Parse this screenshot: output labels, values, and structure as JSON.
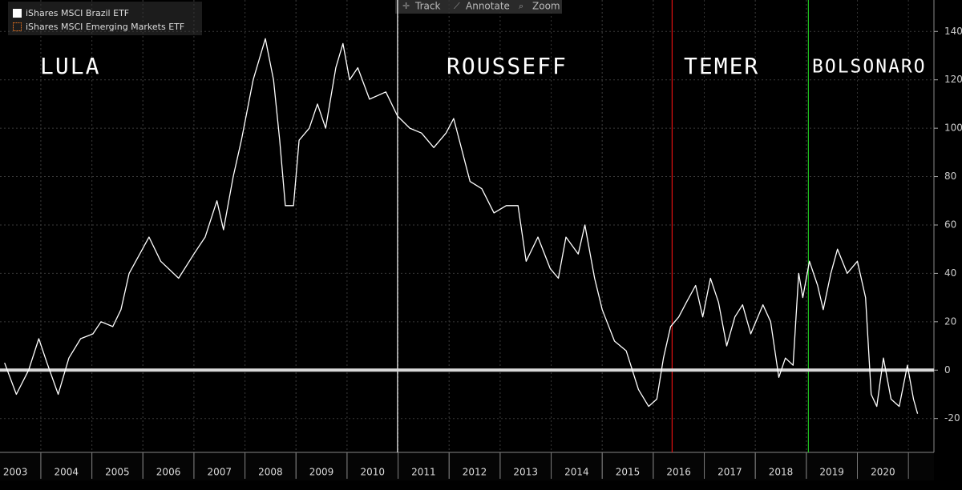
{
  "toolbar": [
    "Track",
    "Annotate",
    "Zoom"
  ],
  "chart_data": {
    "type": "line",
    "xlim": [
      2003.2,
      2021.5
    ],
    "ylim": [
      -34,
      153
    ],
    "yticks": [
      -20,
      0,
      20,
      40,
      60,
      80,
      100,
      120,
      140
    ],
    "xticks": [
      {
        "value": 2003.5,
        "label": "2003"
      },
      {
        "value": 2004.5,
        "label": "2004"
      },
      {
        "value": 2005.5,
        "label": "2005"
      },
      {
        "value": 2006.5,
        "label": "2006"
      },
      {
        "value": 2007.5,
        "label": "2007"
      },
      {
        "value": 2008.5,
        "label": "2008"
      },
      {
        "value": 2009.5,
        "label": "2009"
      },
      {
        "value": 2010.5,
        "label": "2010"
      },
      {
        "value": 2011.5,
        "label": "2011"
      },
      {
        "value": 2012.5,
        "label": "2012"
      },
      {
        "value": 2013.5,
        "label": "2013"
      },
      {
        "value": 2014.5,
        "label": "2014"
      },
      {
        "value": 2015.5,
        "label": "2015"
      },
      {
        "value": 2016.5,
        "label": "2016"
      },
      {
        "value": 2017.5,
        "label": "2017"
      },
      {
        "value": 2018.5,
        "label": "2018"
      },
      {
        "value": 2019.5,
        "label": "2019"
      },
      {
        "value": 2020.5,
        "label": "2020"
      }
    ],
    "grid": true,
    "series": [
      {
        "name": "iShares MSCI Brazil ETF",
        "color": "#ffffff",
        "x": [
          2003.29,
          2003.52,
          2003.76,
          2003.96,
          2004.12,
          2004.34,
          2004.55,
          2004.78,
          2005.02,
          2005.18,
          2005.41,
          2005.57,
          2005.73,
          2006.12,
          2006.35,
          2006.7,
          2007.0,
          2007.22,
          2007.45,
          2007.58,
          2007.77,
          2007.93,
          2008.16,
          2008.4,
          2008.56,
          2008.68,
          2008.79,
          2008.95,
          2009.06,
          2009.26,
          2009.42,
          2009.58,
          2009.78,
          2009.92,
          2010.05,
          2010.21,
          2010.44,
          2010.76,
          2010.99,
          2011.23,
          2011.46,
          2011.7,
          2011.94,
          2012.09,
          2012.2,
          2012.41,
          2012.64,
          2012.88,
          2013.12,
          2013.35,
          2013.51,
          2013.74,
          2013.98,
          2014.14,
          2014.29,
          2014.53,
          2014.66,
          2014.85,
          2015.0,
          2015.24,
          2015.47,
          2015.71,
          2015.91,
          2016.07,
          2016.2,
          2016.34,
          2016.5,
          2016.65,
          2016.83,
          2016.97,
          2017.12,
          2017.28,
          2017.44,
          2017.6,
          2017.75,
          2017.91,
          2018.15,
          2018.3,
          2018.46,
          2018.59,
          2018.74,
          2018.85,
          2018.93,
          2019.06,
          2019.22,
          2019.33,
          2019.48,
          2019.61,
          2019.8,
          2020.0,
          2020.16,
          2020.27,
          2020.38,
          2020.51,
          2020.66,
          2020.82,
          2020.98,
          2021.1,
          2021.18
        ],
        "values": [
          3,
          -10,
          0,
          13,
          3,
          -10,
          5,
          13,
          15,
          20,
          18,
          25,
          40,
          55,
          45,
          38,
          48,
          55,
          70,
          58,
          80,
          95,
          120,
          137,
          120,
          95,
          68,
          68,
          95,
          100,
          110,
          100,
          125,
          135,
          120,
          125,
          112,
          115,
          105,
          100,
          98,
          92,
          98,
          104,
          95,
          78,
          75,
          65,
          68,
          68,
          45,
          55,
          42,
          38,
          55,
          48,
          60,
          38,
          25,
          12,
          8,
          -8,
          -15,
          -12,
          5,
          18,
          22,
          28,
          35,
          22,
          38,
          28,
          10,
          22,
          27,
          15,
          27,
          20,
          -3,
          5,
          2,
          40,
          30,
          45,
          35,
          25,
          40,
          50,
          40,
          45,
          30,
          -10,
          -15,
          5,
          -12,
          -15,
          2,
          -12,
          -18
        ]
      },
      {
        "name": "iShares MSCI Emerging Markets ETF",
        "color": "#d8d8d8",
        "x": [
          2003.2,
          2021.5
        ],
        "values": [
          0,
          0
        ]
      }
    ],
    "annotations": [
      {
        "text": "LULA",
        "x": 2003.2,
        "color": "#ffffff"
      },
      {
        "text": "ROUSSEFF",
        "x": 2010.99,
        "color": "#ffffff"
      },
      {
        "text": "TEMER",
        "x": 2016.37,
        "color": "#e01010"
      },
      {
        "text": "BOLSONARO",
        "x": 2019.04,
        "color": "#20c020"
      }
    ]
  }
}
